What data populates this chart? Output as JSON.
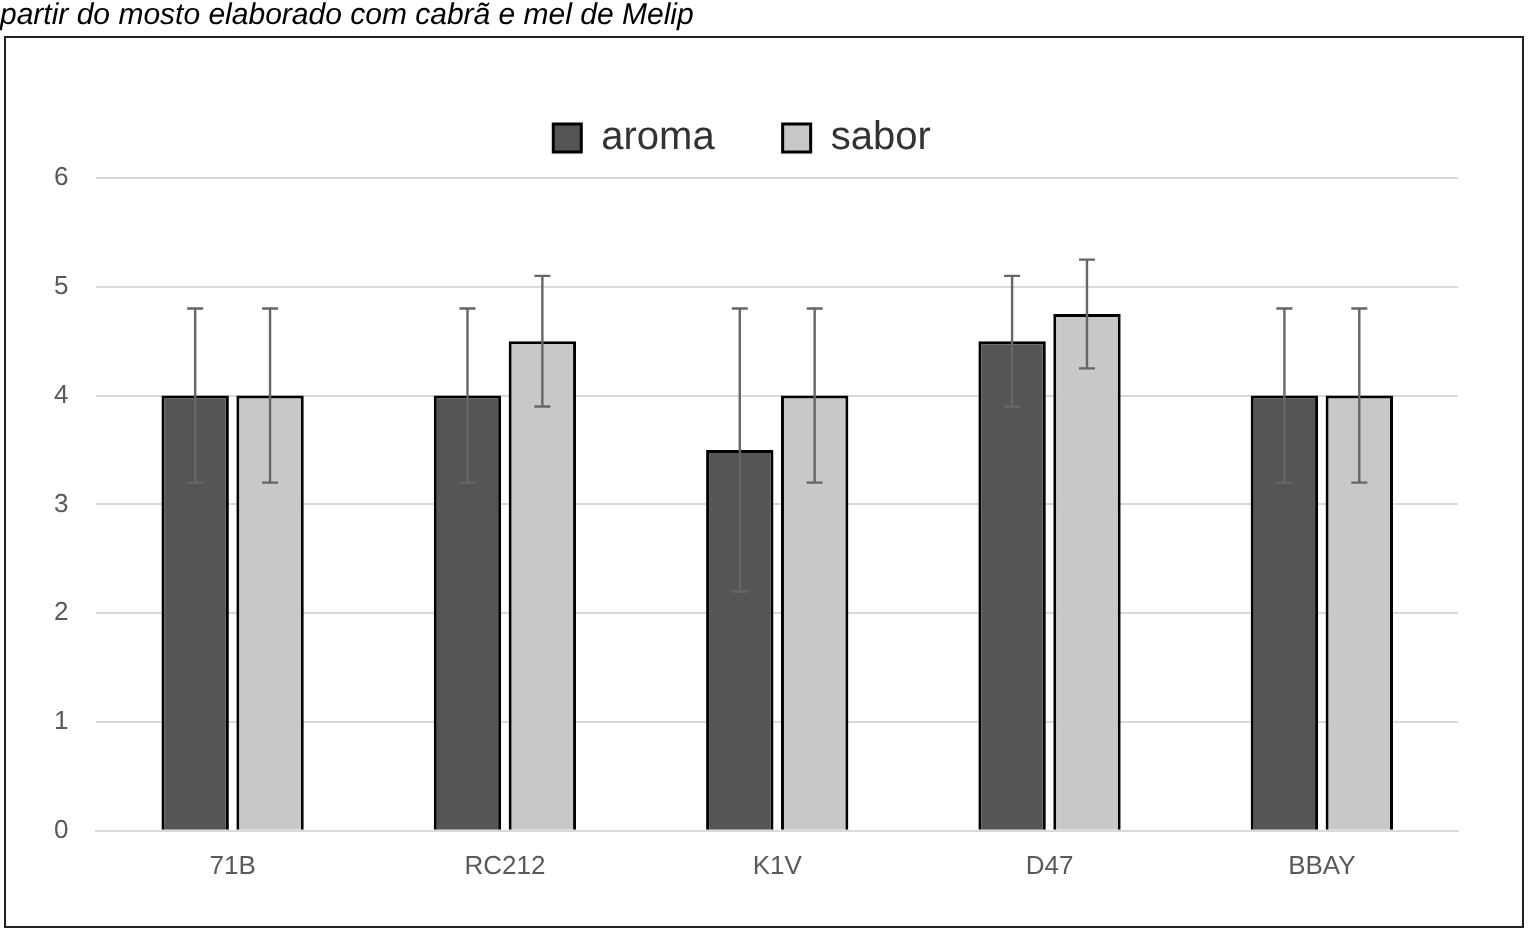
{
  "chart_data": {
    "type": "bar",
    "annotations": [
      "partir do mosto elaborado com cabrã e mel de Melip"
    ],
    "categories": [
      "71B",
      "RC212",
      "K1V",
      "D47",
      "BBAY"
    ],
    "series": [
      {
        "name": "aroma",
        "color": "#555555",
        "values": [
          4,
          4,
          3.5,
          4.5,
          4
        ],
        "errors": [
          0.8,
          0.8,
          1.3,
          0.6,
          0.8
        ]
      },
      {
        "name": "sabor",
        "color": "#c8c8c8",
        "values": [
          4,
          4.5,
          4,
          4.75,
          4
        ],
        "errors": [
          0.8,
          0.6,
          0.8,
          0.5,
          0.8
        ]
      }
    ],
    "ylim": [
      0,
      6
    ],
    "yticks": [
      0,
      1,
      2,
      3,
      4,
      5,
      6
    ],
    "grid": "y",
    "legend": "top"
  }
}
